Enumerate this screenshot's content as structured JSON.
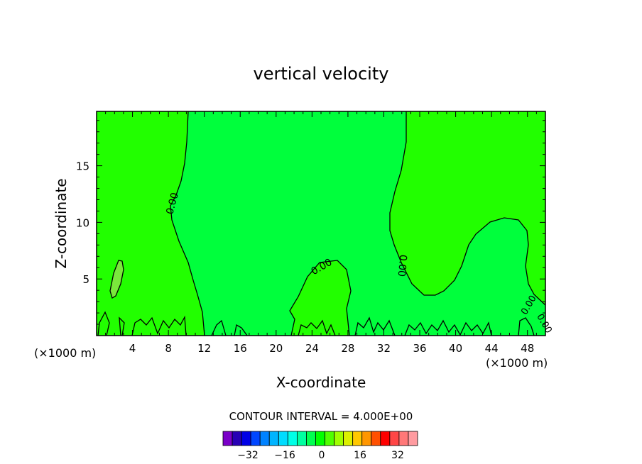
{
  "chart_data": {
    "type": "contour",
    "title": "vertical velocity",
    "xlabel": "X-coordinate",
    "ylabel": "Z-coordinate",
    "x_unit_left": "(×1000 m)",
    "x_unit_right": "(×1000 m)",
    "xlim": [
      0,
      50
    ],
    "ylim": [
      0,
      19.8
    ],
    "xticks": [
      "4",
      "8",
      "12",
      "16",
      "20",
      "24",
      "28",
      "32",
      "36",
      "40",
      "44",
      "48"
    ],
    "yticks": [
      "5",
      "10",
      "15"
    ],
    "contour_labels": [
      "0.00",
      "0.00",
      "0.00",
      "0.00",
      "0.00"
    ],
    "contour_interval_text": "CONTOUR INTERVAL = 4.000E+00",
    "colorbar": {
      "tick_labels": [
        "−32",
        "−16",
        "0",
        "16",
        "32"
      ],
      "colors": [
        "#7a00c8",
        "#2800b4",
        "#0000e6",
        "#0046ff",
        "#0082ff",
        "#00b4ff",
        "#00dcff",
        "#00ffe6",
        "#00ffa0",
        "#00ff50",
        "#00ff00",
        "#50ff00",
        "#a0ff00",
        "#dcf000",
        "#ffc800",
        "#ff9600",
        "#ff5000",
        "#ff0000",
        "#ff4646",
        "#ff7878",
        "#ff9ba0"
      ]
    },
    "fill_colors": {
      "negative_small": "#00ff3c",
      "positive_small": "#22ff00",
      "positive_medium": "#7ae83c"
    }
  }
}
